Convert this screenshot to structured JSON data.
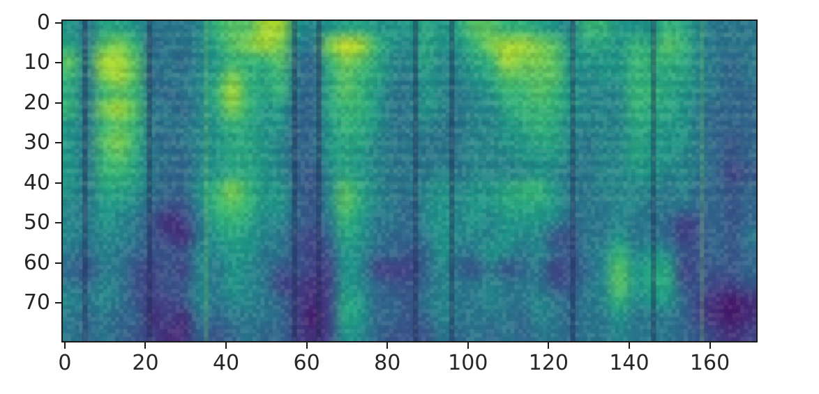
{
  "figure": {
    "background": "#ffffff",
    "axis_color": "#1a1a1a",
    "tick_label_color": "#262626"
  },
  "chart_data": {
    "type": "heatmap",
    "title": "",
    "subtitle": "",
    "xlabel": "",
    "ylabel": "",
    "legend": "none",
    "grid_on": false,
    "colormap": "viridis",
    "x_ticks": [
      0,
      20,
      40,
      60,
      80,
      100,
      120,
      140,
      160
    ],
    "y_ticks": [
      0,
      10,
      20,
      30,
      40,
      50,
      60,
      70
    ],
    "x_range": [
      -0.5,
      171.5
    ],
    "y_range": [
      79.5,
      -0.5
    ],
    "y_axis_inverted": true,
    "grid_shape": [
      80,
      172
    ],
    "downsampled_shape": [
      20,
      43
    ],
    "value_encoding": "hex digit per cell, 0 = min (dark purple) to 15 = max (bright yellow); rows top to bottom, downsampled from 80x172 spectrogram",
    "values_hex_rows": [
      "869986667abbdd87899888989bbaa987aa888a97666",
      "96bca56679bcdc76ceda87988acddcb8998a9ba7666",
      "b7ddb66578aaab65acb9779779adccb8888aaa97656",
      "a6cdb56679ca9a659ba97687789bbbb8788a9997656",
      "96aba6567ada9a659ba86687678aaba8777aa987655",
      "a6cdb66579ca88559aa866876779aaa8777a9986555",
      "86aba66678a988558a98667667789a9777799886555",
      "86bca656789987558997666667788997677988 86545",
      "86ab9665789987558987666667778887677988 76545",
      "86aa9655789987547987666767777876677887 76534",
      "869986558aca88547b9766787889aa866777767 5545",
      "768875447aba88547b9765787889998666776665545",
      "7687642369a977546a8665787878887566766534545",
      "767764326898764359865568777877446686653 4546",
      "657654447788664348755458668767546 7a78744545",
      "546643437687644338733357546456345 7b89934445",
      "657643447687633238754457667666446 7b89944334",
      "767643347677653239855467667667656 7a78853212",
      "656552326566653139855457666657656686665 3212",
      "656543225456553238754446565656656676665 4323"
    ],
    "viridis_stops": [
      "#440154",
      "#482878",
      "#3e4a89",
      "#31688e",
      "#26828e",
      "#1f9e89",
      "#35b779",
      "#6ece58",
      "#b5de2b",
      "#fde725"
    ],
    "dark_time_columns": [
      5,
      21,
      57,
      63,
      87,
      96,
      126,
      146
    ],
    "bright_time_columns": [
      35,
      158
    ],
    "texture": {
      "harmonic_stripe_period_rows": 3.4,
      "harmonic_rows_extent": 44,
      "stripe_alpha": 0.055,
      "speckle_alpha": 0.09
    }
  }
}
